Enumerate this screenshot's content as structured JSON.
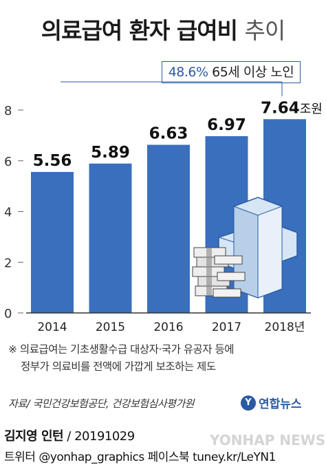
{
  "title": {
    "main": "의료급여 환자 급여비",
    "sub": "추이"
  },
  "callout": {
    "percent": "48.6%",
    "rest": " 65세 이상 노인"
  },
  "chart_data": {
    "type": "bar",
    "categories": [
      "2014",
      "2015",
      "2016",
      "2017",
      "2018년"
    ],
    "values": [
      5.56,
      5.89,
      6.63,
      6.97,
      7.64
    ],
    "value_labels": [
      "5.56",
      "5.89",
      "6.63",
      "6.97",
      "7.64"
    ],
    "unit_suffix": "조원",
    "ylim": [
      0,
      8
    ],
    "yticks": [
      "0",
      "2",
      "4",
      "6",
      "8"
    ],
    "bar_color": "#3a6fbd",
    "grid": false
  },
  "note": {
    "line1": "※ 의료급여는 기초생활수급 대상자·국가 유공자 등에",
    "line2": "정부가 의료비를 전액에 가깝게 보조하는 제도"
  },
  "source": "자료/ 국민건강보험공단, 건강보험심사평가원",
  "brand": {
    "mark": "Y",
    "name": "연합뉴스"
  },
  "credit": {
    "author": "김지영 인턴",
    "date": " / 20191029",
    "social": "트위터 @yonhap_graphics  페이스북 tuney.kr/LeYN1"
  },
  "watermark": "YONHAP NEWS",
  "icon": "medical-cross-with-cash-icon"
}
